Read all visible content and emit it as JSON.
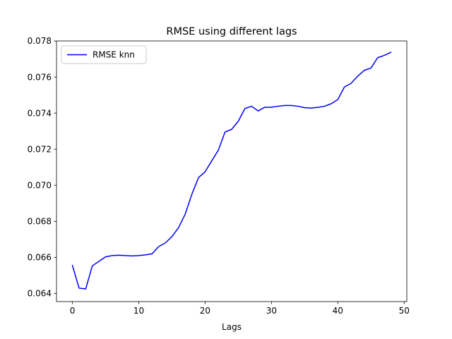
{
  "chart_data": {
    "type": "line",
    "title": "RMSE using different lags",
    "xlabel": "Lags",
    "ylabel": "",
    "xlim": [
      -2.4,
      50.4
    ],
    "ylim": [
      0.06355,
      0.078
    ],
    "xticks": [
      0,
      10,
      20,
      30,
      40,
      50
    ],
    "xtick_labels": [
      "0",
      "10",
      "20",
      "30",
      "40",
      "50"
    ],
    "yticks": [
      0.064,
      0.066,
      0.068,
      0.07,
      0.072,
      0.074,
      0.076,
      0.078
    ],
    "ytick_labels": [
      "0.064",
      "0.066",
      "0.068",
      "0.070",
      "0.072",
      "0.074",
      "0.076",
      "0.078"
    ],
    "grid": false,
    "legend_position": "upper left",
    "series": [
      {
        "name": "RMSE knn",
        "color": "#0000ff",
        "x": [
          0,
          1,
          2,
          3,
          4,
          5,
          6,
          7,
          8,
          9,
          10,
          11,
          12,
          13,
          14,
          15,
          16,
          17,
          18,
          19,
          20,
          21,
          22,
          23,
          24,
          25,
          26,
          27,
          28,
          29,
          30,
          31,
          32,
          33,
          34,
          35,
          36,
          37,
          38,
          39,
          40,
          41,
          42,
          43,
          44,
          45,
          46,
          47,
          48
        ],
        "y": [
          0.06555,
          0.0643,
          0.06425,
          0.06553,
          0.06578,
          0.06603,
          0.0661,
          0.06612,
          0.0661,
          0.06608,
          0.0661,
          0.06614,
          0.0662,
          0.0666,
          0.0668,
          0.06715,
          0.06765,
          0.0684,
          0.0695,
          0.07042,
          0.07075,
          0.07135,
          0.07195,
          0.07295,
          0.0731,
          0.07355,
          0.07425,
          0.07438,
          0.07412,
          0.07433,
          0.07433,
          0.07438,
          0.07442,
          0.07442,
          0.07438,
          0.0743,
          0.07428,
          0.07432,
          0.07438,
          0.07452,
          0.07475,
          0.07545,
          0.07565,
          0.07605,
          0.07637,
          0.0765,
          0.07707,
          0.0772,
          0.07737
        ]
      }
    ]
  }
}
